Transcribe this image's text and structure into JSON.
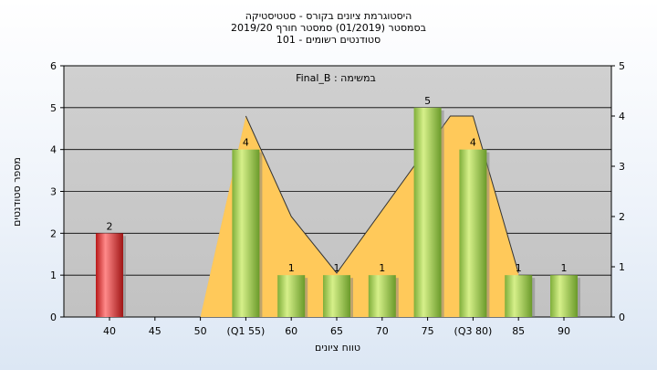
{
  "titles": [
    "היסטוגרמת ציונים בקורס - סטטיסטיקה",
    "בסמסטר  (01/2019)  סמסטר חורף 2019/20",
    "סטודנטים רשומים - 101"
  ],
  "annotation": "Final_B : במשימה",
  "colors": {
    "background": "#ffffff",
    "plot_bg": "#c8c8c8",
    "grid": "#000000",
    "bar_green": "#9ccc4e",
    "bar_green_dark": "#6a9a2a",
    "bar_red": "#e03030",
    "bar_red_dark": "#a01515",
    "area_orange": "#ffc95a",
    "area_gray": "#b4b4b4",
    "line": "#333333"
  },
  "chart_data": {
    "type": "bar",
    "title": "",
    "xlabel": "טווח ציונים",
    "ylabel": "מספר סטודנטים",
    "categories": [
      "40",
      "45",
      "50",
      "(Q1 55)",
      "60",
      "65",
      "70",
      "75",
      "(Q3 80)",
      "85",
      "90"
    ],
    "series": [
      {
        "values": [
          2,
          0,
          0,
          4,
          1,
          1,
          1,
          5,
          4,
          1,
          1
        ]
      }
    ],
    "highlight_index": 0,
    "ylim": [
      0,
      6
    ],
    "y_ticks": [
      "0",
      "1",
      "2",
      "3",
      "4",
      "5",
      "6"
    ],
    "y2lim": [
      0,
      5
    ],
    "y2_ticks": [
      "0",
      "1",
      "2",
      "3",
      "4",
      "5"
    ],
    "bar_labels": [
      "2",
      "",
      "",
      "4",
      "1",
      "1",
      "1",
      "5",
      "4",
      "1",
      "1"
    ],
    "overlay_polygon": {
      "description_points_x_category": [
        2,
        3,
        4,
        5,
        7.5,
        8,
        9,
        9
      ],
      "y_values": [
        0,
        4.8,
        2.4,
        1.05,
        4.8,
        4.8,
        1.05,
        0
      ]
    },
    "grid": true
  }
}
